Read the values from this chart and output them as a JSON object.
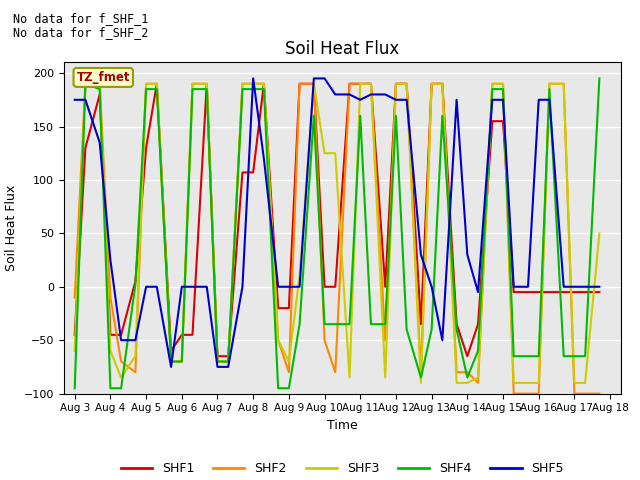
{
  "title": "Soil Heat Flux",
  "ylabel": "Soil Heat Flux",
  "xlabel": "Time",
  "ylim": [
    -100,
    210
  ],
  "yticks": [
    -100,
    -50,
    0,
    50,
    100,
    150,
    200
  ],
  "background_color": "#d8d8d8",
  "plot_bg": "#e8e8e8",
  "annotations": [
    "No data for f_SHF_1",
    "No data for f_SHF_2"
  ],
  "legend_box_label": "TZ_fmet",
  "legend_box_color": "#ffffcc",
  "legend_box_border": "#999900",
  "legend_box_text_color": "#aa0000",
  "series": {
    "SHF1": {
      "color": "#dd0000",
      "linewidth": 1.5
    },
    "SHF2": {
      "color": "#ff8800",
      "linewidth": 1.5
    },
    "SHF3": {
      "color": "#cccc00",
      "linewidth": 1.5
    },
    "SHF4": {
      "color": "#00bb00",
      "linewidth": 1.5
    },
    "SHF5": {
      "color": "#0000cc",
      "linewidth": 1.5
    }
  },
  "x_dates": [
    "Aug 3",
    "Aug 4",
    "Aug 5",
    "Aug 6",
    "Aug 7",
    "Aug 8",
    "Aug 9",
    "Aug 10",
    "Aug 11",
    "Aug 12",
    "Aug 13",
    "Aug 14",
    "Aug 15",
    "Aug 16",
    "Aug 17",
    "Aug 18"
  ],
  "shf1_x": [
    3.0,
    3.3,
    3.7,
    4.0,
    4.3,
    4.7,
    5.0,
    5.3,
    5.7,
    6.0,
    6.3,
    6.7,
    7.0,
    7.3,
    7.7,
    8.0,
    8.3,
    8.7,
    9.0,
    9.3,
    9.7,
    10.0,
    10.3,
    10.7,
    11.0,
    11.3,
    11.7,
    12.0,
    12.3,
    12.7,
    13.0,
    13.3,
    13.7,
    14.0,
    14.3,
    14.7,
    15.0,
    15.3,
    15.7,
    16.0,
    16.3,
    16.7,
    17.0,
    17.3,
    17.7
  ],
  "shf1_y": [
    -45,
    130,
    180,
    -45,
    -45,
    5,
    130,
    190,
    -60,
    -45,
    -45,
    190,
    -65,
    -65,
    107,
    107,
    190,
    -20,
    -20,
    190,
    190,
    0,
    0,
    190,
    190,
    190,
    0,
    190,
    190,
    -35,
    190,
    190,
    -35,
    -65,
    -35,
    155,
    155,
    -5,
    -5,
    -5,
    -5,
    -5,
    -5,
    -5,
    -5
  ],
  "shf2_x": [
    3.0,
    3.3,
    3.7,
    4.0,
    4.3,
    4.7,
    5.0,
    5.3,
    5.7,
    6.0,
    6.3,
    6.7,
    7.0,
    7.3,
    7.7,
    8.0,
    8.3,
    8.7,
    9.0,
    9.3,
    9.7,
    10.0,
    10.3,
    10.7,
    11.0,
    11.3,
    11.7,
    12.0,
    12.3,
    12.7,
    13.0,
    13.3,
    13.7,
    14.0,
    14.3,
    14.7,
    15.0,
    15.3,
    15.7,
    16.0,
    16.3,
    16.7,
    17.0,
    17.3,
    17.7
  ],
  "shf2_y": [
    -10,
    190,
    190,
    -10,
    -70,
    -80,
    190,
    190,
    -70,
    -70,
    190,
    190,
    -70,
    -70,
    190,
    190,
    190,
    -50,
    -80,
    190,
    190,
    -50,
    -80,
    190,
    190,
    190,
    -50,
    190,
    190,
    -80,
    190,
    190,
    -80,
    -80,
    -90,
    190,
    190,
    -100,
    -100,
    -100,
    190,
    190,
    -100,
    -100,
    -100
  ],
  "shf3_x": [
    3.0,
    3.3,
    3.7,
    4.0,
    4.3,
    4.7,
    5.0,
    5.3,
    5.7,
    6.0,
    6.3,
    6.7,
    7.0,
    7.3,
    7.7,
    8.0,
    8.3,
    8.7,
    9.0,
    9.3,
    9.7,
    10.0,
    10.3,
    10.7,
    11.0,
    11.3,
    11.7,
    12.0,
    12.3,
    12.7,
    13.0,
    13.3,
    13.7,
    14.0,
    14.3,
    14.7,
    15.0,
    15.3,
    15.7,
    16.0,
    16.3,
    16.7,
    17.0,
    17.3,
    17.7
  ],
  "shf3_y": [
    -60,
    190,
    190,
    -60,
    -85,
    -65,
    190,
    190,
    -70,
    -70,
    190,
    190,
    -70,
    -70,
    190,
    190,
    190,
    -50,
    -70,
    10,
    190,
    125,
    125,
    -85,
    190,
    190,
    -85,
    190,
    190,
    -90,
    190,
    190,
    -90,
    -90,
    -85,
    190,
    190,
    -90,
    -90,
    -90,
    190,
    190,
    -90,
    -90,
    50
  ],
  "shf4_x": [
    3.0,
    3.3,
    3.7,
    4.0,
    4.3,
    4.7,
    5.0,
    5.3,
    5.7,
    6.0,
    6.3,
    6.7,
    7.0,
    7.3,
    7.7,
    8.0,
    8.3,
    8.7,
    9.0,
    9.3,
    9.7,
    10.0,
    10.3,
    10.7,
    11.0,
    11.3,
    11.7,
    12.0,
    12.3,
    12.7,
    13.0,
    13.3,
    13.7,
    14.0,
    14.3,
    14.7,
    15.0,
    15.3,
    15.7,
    16.0,
    16.3,
    16.7,
    17.0,
    17.3,
    17.7
  ],
  "shf4_y": [
    -95,
    190,
    185,
    -95,
    -95,
    2,
    185,
    185,
    -70,
    -70,
    185,
    185,
    -70,
    -70,
    185,
    185,
    185,
    -95,
    -95,
    -35,
    160,
    -35,
    -35,
    -35,
    160,
    -35,
    -35,
    160,
    -40,
    -85,
    -40,
    160,
    -40,
    -85,
    -60,
    185,
    185,
    -65,
    -65,
    -65,
    185,
    -65,
    -65,
    -65,
    195
  ],
  "shf5_x": [
    3.0,
    3.3,
    3.7,
    4.0,
    4.3,
    4.7,
    5.0,
    5.3,
    5.7,
    6.0,
    6.3,
    6.7,
    7.0,
    7.3,
    7.7,
    8.0,
    8.3,
    8.7,
    9.0,
    9.3,
    9.7,
    10.0,
    10.3,
    10.7,
    11.0,
    11.3,
    11.7,
    12.0,
    12.3,
    12.7,
    13.0,
    13.3,
    13.7,
    14.0,
    14.3,
    14.7,
    15.0,
    15.3,
    15.7,
    16.0,
    16.3,
    16.7,
    17.0,
    17.3,
    17.7
  ],
  "shf5_y": [
    175,
    175,
    135,
    25,
    -50,
    -50,
    0,
    0,
    -75,
    0,
    0,
    0,
    -75,
    -75,
    0,
    195,
    120,
    0,
    0,
    0,
    195,
    195,
    180,
    180,
    175,
    180,
    180,
    175,
    175,
    30,
    0,
    -50,
    175,
    30,
    -5,
    175,
    175,
    0,
    0,
    175,
    175,
    0,
    0,
    0,
    0
  ]
}
